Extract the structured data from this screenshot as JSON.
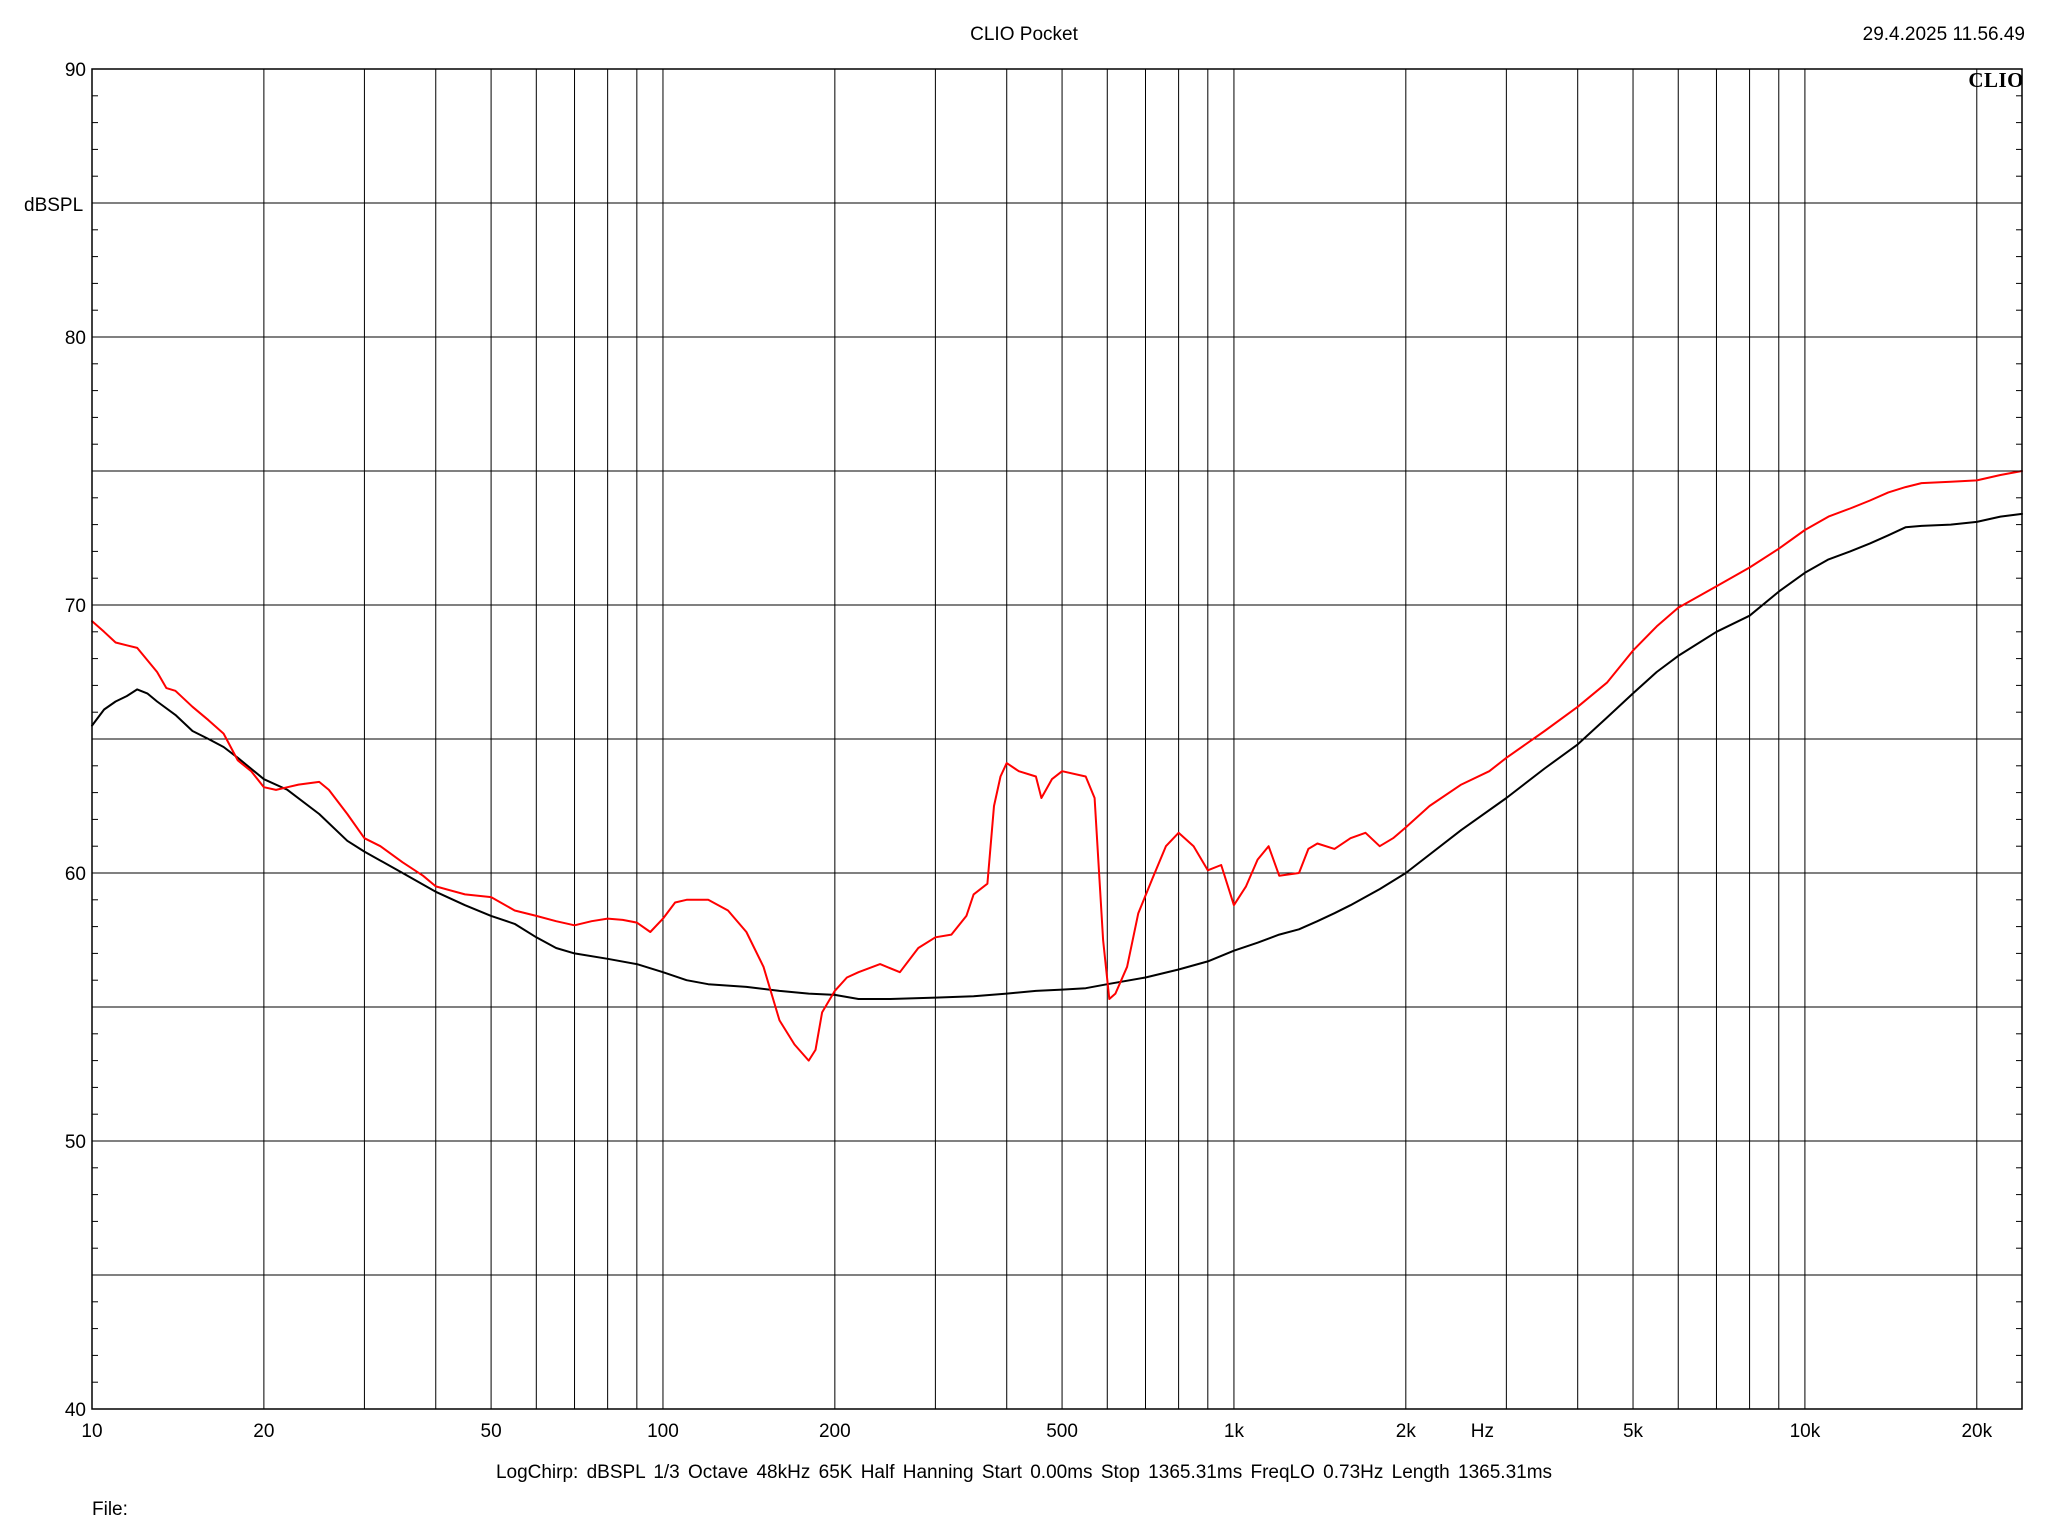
{
  "header": {
    "title": "CLIO Pocket",
    "timestamp": "29.4.2025 11.56.49",
    "brand": "CLIO"
  },
  "footer": {
    "settings": "LogChirp:  dBSPL   1/3 Octave   48kHz   65K   Half Hanning   Start 0.00ms    Stop 1365.31ms    FreqLO 0.73Hz    Length 1365.31ms",
    "file_label": "File:"
  },
  "chart_data": {
    "type": "line",
    "title": "CLIO Pocket",
    "ylabel": "dBSPL",
    "xlabel": "Hz",
    "x_scale": "log",
    "xlim": [
      10,
      24000
    ],
    "ylim": [
      40,
      90
    ],
    "grid": true,
    "x_major_ticks": [
      10,
      20,
      30,
      40,
      50,
      60,
      70,
      80,
      90,
      100,
      200,
      300,
      400,
      500,
      600,
      700,
      800,
      900,
      1000,
      2000,
      3000,
      4000,
      5000,
      6000,
      7000,
      8000,
      9000,
      10000,
      20000
    ],
    "x_tick_labels": [
      {
        "value": 10,
        "label": "10"
      },
      {
        "value": 20,
        "label": "20"
      },
      {
        "value": 50,
        "label": "50"
      },
      {
        "value": 100,
        "label": "100"
      },
      {
        "value": 200,
        "label": "200"
      },
      {
        "value": 500,
        "label": "500"
      },
      {
        "value": 1000,
        "label": "1k"
      },
      {
        "value": 2000,
        "label": "2k"
      },
      {
        "value": 5000,
        "label": "5k"
      },
      {
        "value": 10000,
        "label": "10k"
      },
      {
        "value": 20000,
        "label": "20k"
      }
    ],
    "y_tick_labels": [
      {
        "value": 40,
        "label": "40"
      },
      {
        "value": 50,
        "label": "50"
      },
      {
        "value": 60,
        "label": "60"
      },
      {
        "value": 70,
        "label": "70"
      },
      {
        "value": 80,
        "label": "80"
      },
      {
        "value": 90,
        "label": "90"
      }
    ],
    "y_grid": [
      40,
      45,
      50,
      55,
      60,
      65,
      70,
      75,
      80,
      85,
      90
    ],
    "series": [
      {
        "color": "#000000",
        "points": [
          [
            10,
            65.5
          ],
          [
            10.5,
            66.1
          ],
          [
            11,
            66.4
          ],
          [
            11.5,
            66.6
          ],
          [
            12,
            66.85
          ],
          [
            12.5,
            66.7
          ],
          [
            13,
            66.4
          ],
          [
            14,
            65.9
          ],
          [
            15,
            65.3
          ],
          [
            16,
            65.0
          ],
          [
            17,
            64.7
          ],
          [
            18,
            64.3
          ],
          [
            20,
            63.5
          ],
          [
            22,
            63.1
          ],
          [
            25,
            62.2
          ],
          [
            28,
            61.2
          ],
          [
            30,
            60.8
          ],
          [
            35,
            60.0
          ],
          [
            40,
            59.3
          ],
          [
            45,
            58.8
          ],
          [
            50,
            58.4
          ],
          [
            55,
            58.1
          ],
          [
            60,
            57.6
          ],
          [
            65,
            57.2
          ],
          [
            70,
            57.0
          ],
          [
            80,
            56.8
          ],
          [
            90,
            56.6
          ],
          [
            100,
            56.3
          ],
          [
            110,
            56.0
          ],
          [
            120,
            55.85
          ],
          [
            140,
            55.75
          ],
          [
            160,
            55.6
          ],
          [
            180,
            55.5
          ],
          [
            200,
            55.45
          ],
          [
            220,
            55.3
          ],
          [
            250,
            55.3
          ],
          [
            300,
            55.35
          ],
          [
            350,
            55.4
          ],
          [
            400,
            55.5
          ],
          [
            450,
            55.6
          ],
          [
            500,
            55.65
          ],
          [
            550,
            55.7
          ],
          [
            600,
            55.85
          ],
          [
            700,
            56.1
          ],
          [
            800,
            56.4
          ],
          [
            900,
            56.7
          ],
          [
            1000,
            57.1
          ],
          [
            1100,
            57.4
          ],
          [
            1200,
            57.7
          ],
          [
            1300,
            57.9
          ],
          [
            1400,
            58.2
          ],
          [
            1500,
            58.5
          ],
          [
            1600,
            58.8
          ],
          [
            1800,
            59.4
          ],
          [
            2000,
            60.0
          ],
          [
            2500,
            61.6
          ],
          [
            3000,
            62.8
          ],
          [
            3500,
            63.9
          ],
          [
            4000,
            64.8
          ],
          [
            4500,
            65.8
          ],
          [
            5000,
            66.7
          ],
          [
            5500,
            67.5
          ],
          [
            6000,
            68.1
          ],
          [
            7000,
            69.0
          ],
          [
            8000,
            69.6
          ],
          [
            9000,
            70.5
          ],
          [
            10000,
            71.2
          ],
          [
            11000,
            71.7
          ],
          [
            12000,
            72.0
          ],
          [
            13000,
            72.3
          ],
          [
            14000,
            72.6
          ],
          [
            15000,
            72.9
          ],
          [
            16000,
            72.95
          ],
          [
            18000,
            73.0
          ],
          [
            20000,
            73.1
          ],
          [
            22000,
            73.3
          ],
          [
            24000,
            73.4
          ]
        ]
      },
      {
        "color": "#ff0000",
        "points": [
          [
            10,
            69.4
          ],
          [
            10.5,
            69.0
          ],
          [
            11,
            68.6
          ],
          [
            12,
            68.4
          ],
          [
            13,
            67.5
          ],
          [
            13.5,
            66.9
          ],
          [
            14,
            66.8
          ],
          [
            15,
            66.2
          ],
          [
            16,
            65.7
          ],
          [
            17,
            65.2
          ],
          [
            18,
            64.2
          ],
          [
            19,
            63.8
          ],
          [
            20,
            63.2
          ],
          [
            21,
            63.1
          ],
          [
            22,
            63.2
          ],
          [
            23,
            63.3
          ],
          [
            25,
            63.4
          ],
          [
            26,
            63.1
          ],
          [
            28,
            62.2
          ],
          [
            30,
            61.3
          ],
          [
            32,
            61.0
          ],
          [
            35,
            60.4
          ],
          [
            38,
            59.9
          ],
          [
            40,
            59.5
          ],
          [
            45,
            59.2
          ],
          [
            50,
            59.1
          ],
          [
            55,
            58.6
          ],
          [
            60,
            58.4
          ],
          [
            65,
            58.2
          ],
          [
            70,
            58.05
          ],
          [
            75,
            58.2
          ],
          [
            80,
            58.3
          ],
          [
            85,
            58.25
          ],
          [
            90,
            58.15
          ],
          [
            95,
            57.8
          ],
          [
            100,
            58.3
          ],
          [
            105,
            58.9
          ],
          [
            110,
            59.0
          ],
          [
            120,
            59.0
          ],
          [
            130,
            58.6
          ],
          [
            140,
            57.8
          ],
          [
            150,
            56.5
          ],
          [
            160,
            54.5
          ],
          [
            170,
            53.6
          ],
          [
            180,
            53.0
          ],
          [
            185,
            53.4
          ],
          [
            190,
            54.8
          ],
          [
            200,
            55.6
          ],
          [
            210,
            56.1
          ],
          [
            220,
            56.3
          ],
          [
            240,
            56.6
          ],
          [
            260,
            56.3
          ],
          [
            280,
            57.2
          ],
          [
            300,
            57.6
          ],
          [
            320,
            57.7
          ],
          [
            340,
            58.4
          ],
          [
            350,
            59.2
          ],
          [
            370,
            59.6
          ],
          [
            380,
            62.5
          ],
          [
            390,
            63.6
          ],
          [
            400,
            64.1
          ],
          [
            420,
            63.8
          ],
          [
            450,
            63.6
          ],
          [
            460,
            62.8
          ],
          [
            480,
            63.5
          ],
          [
            500,
            63.8
          ],
          [
            550,
            63.6
          ],
          [
            570,
            62.8
          ],
          [
            590,
            57.5
          ],
          [
            605,
            55.3
          ],
          [
            620,
            55.5
          ],
          [
            650,
            56.5
          ],
          [
            680,
            58.5
          ],
          [
            720,
            59.8
          ],
          [
            760,
            61.0
          ],
          [
            800,
            61.5
          ],
          [
            850,
            61.0
          ],
          [
            900,
            60.1
          ],
          [
            950,
            60.3
          ],
          [
            1000,
            58.8
          ],
          [
            1050,
            59.5
          ],
          [
            1100,
            60.5
          ],
          [
            1150,
            61.0
          ],
          [
            1200,
            59.9
          ],
          [
            1300,
            60.0
          ],
          [
            1350,
            60.9
          ],
          [
            1400,
            61.1
          ],
          [
            1500,
            60.9
          ],
          [
            1600,
            61.3
          ],
          [
            1700,
            61.5
          ],
          [
            1800,
            61.0
          ],
          [
            1900,
            61.3
          ],
          [
            2000,
            61.7
          ],
          [
            2200,
            62.5
          ],
          [
            2500,
            63.3
          ],
          [
            2800,
            63.8
          ],
          [
            3000,
            64.3
          ],
          [
            3500,
            65.3
          ],
          [
            4000,
            66.2
          ],
          [
            4500,
            67.1
          ],
          [
            5000,
            68.3
          ],
          [
            5500,
            69.2
          ],
          [
            6000,
            69.9
          ],
          [
            7000,
            70.7
          ],
          [
            8000,
            71.4
          ],
          [
            9000,
            72.1
          ],
          [
            10000,
            72.8
          ],
          [
            11000,
            73.3
          ],
          [
            12000,
            73.6
          ],
          [
            13000,
            73.9
          ],
          [
            14000,
            74.2
          ],
          [
            15000,
            74.4
          ],
          [
            16000,
            74.55
          ],
          [
            18000,
            74.6
          ],
          [
            20000,
            74.65
          ],
          [
            22000,
            74.85
          ],
          [
            24000,
            75.0
          ]
        ]
      }
    ]
  }
}
